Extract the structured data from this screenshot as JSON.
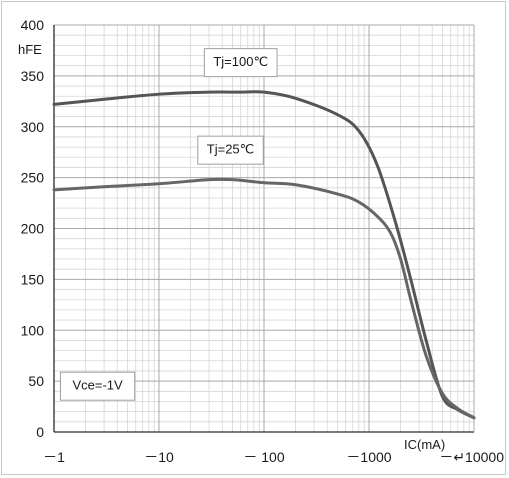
{
  "chart_data": {
    "type": "line",
    "title": "",
    "xlabel": "IC(mA)",
    "ylabel": "hFE",
    "x_scale": "log",
    "x_ticks": [
      1,
      10,
      100,
      1000,
      10000
    ],
    "x_tick_labels": [
      "－1",
      "－10",
      "－ 100",
      "－1000",
      "－↵10000"
    ],
    "y_ticks": [
      0,
      50,
      100,
      150,
      200,
      250,
      300,
      350,
      400
    ],
    "y_tick_labels": [
      "0",
      "50",
      "100",
      "150",
      "200",
      "250",
      "300",
      "350",
      "400"
    ],
    "xlim": [
      1,
      10000
    ],
    "ylim": [
      0,
      400
    ],
    "grid": true,
    "series": [
      {
        "name": "Tj=100℃",
        "color": "#555555",
        "x": [
          1,
          3,
          10,
          30,
          60,
          100,
          200,
          500,
          800,
          1200,
          1800,
          2500,
          3500,
          5000,
          7000,
          10000
        ],
        "y": [
          322,
          327,
          332,
          334,
          334,
          334,
          328,
          312,
          296,
          262,
          205,
          150,
          90,
          35,
          22,
          14
        ]
      },
      {
        "name": "Tj=25℃",
        "color": "#666666",
        "x": [
          1,
          3,
          10,
          30,
          50,
          100,
          200,
          500,
          800,
          1200,
          1600,
          2000,
          2500,
          3500,
          5000,
          7000,
          10000
        ],
        "y": [
          238,
          241,
          244,
          248,
          248,
          245,
          243,
          234,
          226,
          212,
          196,
          170,
          130,
          75,
          38,
          23,
          14
        ]
      }
    ],
    "annotations": [
      {
        "text": "Tj=100℃",
        "x": 60,
        "y": 363
      },
      {
        "text": "Tj=25℃",
        "x": 48,
        "y": 277
      },
      {
        "text": "Vce=-1V",
        "x": 2.6,
        "y": 45
      }
    ]
  }
}
